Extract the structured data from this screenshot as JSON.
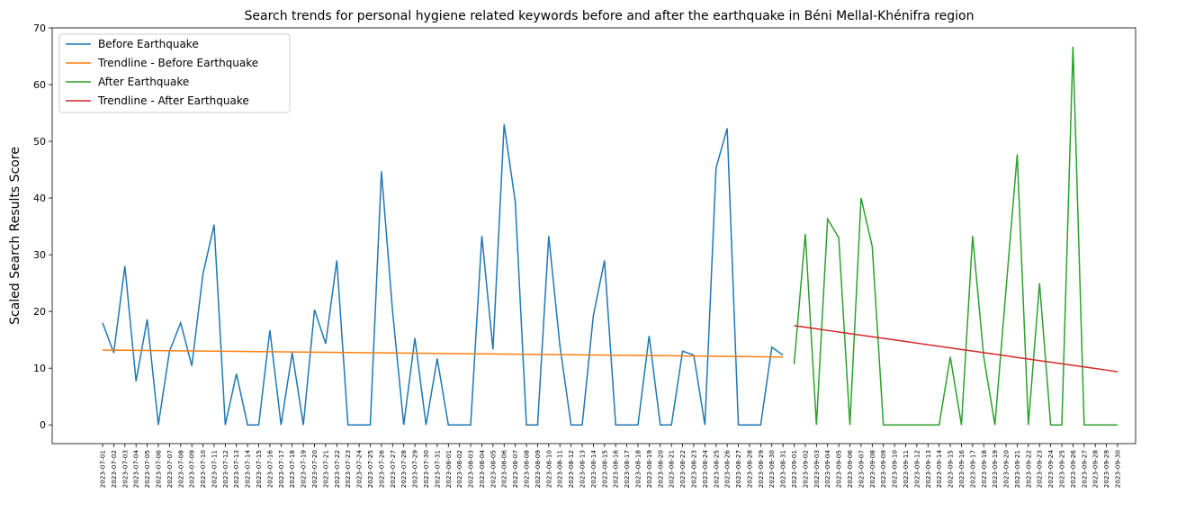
{
  "chart_data": {
    "type": "line",
    "title": "Search trends for personal hygiene related keywords before and after the earthquake in Béni Mellal-Khénifra region",
    "y_label": "Scaled Search Results Score",
    "categories": [
      "2023-07-01",
      "2023-07-02",
      "2023-07-03",
      "2023-07-04",
      "2023-07-05",
      "2023-07-06",
      "2023-07-07",
      "2023-07-08",
      "2023-07-09",
      "2023-07-10",
      "2023-07-11",
      "2023-07-12",
      "2023-07-13",
      "2023-07-14",
      "2023-07-15",
      "2023-07-16",
      "2023-07-17",
      "2023-07-18",
      "2023-07-19",
      "2023-07-20",
      "2023-07-21",
      "2023-07-22",
      "2023-07-23",
      "2023-07-24",
      "2023-07-25",
      "2023-07-26",
      "2023-07-27",
      "2023-07-28",
      "2023-07-29",
      "2023-07-30",
      "2023-07-31",
      "2023-08-01",
      "2023-08-02",
      "2023-08-03",
      "2023-08-04",
      "2023-08-05",
      "2023-08-06",
      "2023-08-07",
      "2023-08-08",
      "2023-08-09",
      "2023-08-10",
      "2023-08-11",
      "2023-08-12",
      "2023-08-13",
      "2023-08-14",
      "2023-08-15",
      "2023-08-16",
      "2023-08-17",
      "2023-08-18",
      "2023-08-19",
      "2023-08-20",
      "2023-08-21",
      "2023-08-22",
      "2023-08-23",
      "2023-08-24",
      "2023-08-25",
      "2023-08-26",
      "2023-08-27",
      "2023-08-28",
      "2023-08-29",
      "2023-08-30",
      "2023-08-31",
      "2023-09-01",
      "2023-09-02",
      "2023-09-03",
      "2023-09-04",
      "2023-09-05",
      "2023-09-06",
      "2023-09-07",
      "2023-09-08",
      "2023-09-09",
      "2023-09-10",
      "2023-09-11",
      "2023-09-12",
      "2023-09-13",
      "2023-09-14",
      "2023-09-15",
      "2023-09-16",
      "2023-09-17",
      "2023-09-18",
      "2023-09-19",
      "2023-09-20",
      "2023-09-21",
      "2023-09-22",
      "2023-09-23",
      "2023-09-24",
      "2023-09-25",
      "2023-09-26",
      "2023-09-27",
      "2023-09-28",
      "2023-09-29",
      "2023-09-30"
    ],
    "series": [
      {
        "name": "Before Earthquake",
        "color": "#1f77b4",
        "values": [
          18,
          12.7,
          28,
          7.7,
          18.6,
          0,
          13,
          18,
          10.4,
          26.6,
          35.3,
          0,
          9,
          0,
          0,
          16.7,
          0,
          12.7,
          0,
          20.3,
          14.3,
          29,
          0,
          0,
          0,
          44.7,
          20,
          0,
          15.3,
          0,
          11.7,
          0,
          0,
          0,
          33.3,
          13.3,
          53,
          39.3,
          0,
          0,
          33.3,
          14,
          0,
          0,
          19.3,
          29,
          0,
          0,
          0,
          15.7,
          0,
          0,
          13,
          12.3,
          0,
          45.3,
          52.3,
          0,
          0,
          0,
          13.7,
          12.3,
          null,
          null,
          null,
          null,
          null,
          null,
          null,
          null,
          null,
          null,
          null,
          null,
          null,
          null,
          null,
          null,
          null,
          null,
          null,
          null,
          null,
          null,
          null,
          null,
          null,
          null,
          null,
          null,
          null,
          null
        ]
      },
      {
        "name": "Trendline - Before Earthquake",
        "color": "#ff7f0e",
        "values": [
          13.2,
          13.18,
          13.16,
          13.14,
          13.12,
          13.1,
          13.08,
          13.06,
          13.04,
          13.02,
          13,
          12.98,
          12.96,
          12.94,
          12.92,
          12.9,
          12.88,
          12.86,
          12.84,
          12.82,
          12.8,
          12.78,
          12.76,
          12.74,
          12.72,
          12.7,
          12.68,
          12.66,
          12.64,
          12.62,
          12.6,
          12.58,
          12.56,
          12.54,
          12.52,
          12.5,
          12.48,
          12.46,
          12.44,
          12.42,
          12.4,
          12.38,
          12.36,
          12.34,
          12.32,
          12.3,
          12.28,
          12.26,
          12.24,
          12.22,
          12.2,
          12.18,
          12.16,
          12.14,
          12.12,
          12.1,
          12.08,
          12.06,
          12.04,
          12.02,
          12,
          11.98,
          null,
          null,
          null,
          null,
          null,
          null,
          null,
          null,
          null,
          null,
          null,
          null,
          null,
          null,
          null,
          null,
          null,
          null,
          null,
          null,
          null,
          null,
          null,
          null,
          null,
          null,
          null,
          null,
          null,
          null
        ]
      },
      {
        "name": "After Earthquake",
        "color": "#2ca02c",
        "values": [
          null,
          null,
          null,
          null,
          null,
          null,
          null,
          null,
          null,
          null,
          null,
          null,
          null,
          null,
          null,
          null,
          null,
          null,
          null,
          null,
          null,
          null,
          null,
          null,
          null,
          null,
          null,
          null,
          null,
          null,
          null,
          null,
          null,
          null,
          null,
          null,
          null,
          null,
          null,
          null,
          null,
          null,
          null,
          null,
          null,
          null,
          null,
          null,
          null,
          null,
          null,
          null,
          null,
          null,
          null,
          null,
          null,
          null,
          null,
          null,
          null,
          null,
          10.7,
          33.7,
          0,
          36.3,
          33,
          0,
          40,
          31.5,
          0,
          0,
          0,
          0,
          0,
          0,
          12,
          0,
          33.3,
          12,
          0,
          24,
          47.7,
          0,
          25,
          0,
          0,
          66.7,
          0,
          0,
          0,
          0
        ]
      },
      {
        "name": "Trendline - After Earthquake",
        "color": "#d62728",
        "values": [
          null,
          null,
          null,
          null,
          null,
          null,
          null,
          null,
          null,
          null,
          null,
          null,
          null,
          null,
          null,
          null,
          null,
          null,
          null,
          null,
          null,
          null,
          null,
          null,
          null,
          null,
          null,
          null,
          null,
          null,
          null,
          null,
          null,
          null,
          null,
          null,
          null,
          null,
          null,
          null,
          null,
          null,
          null,
          null,
          null,
          null,
          null,
          null,
          null,
          null,
          null,
          null,
          null,
          null,
          null,
          null,
          null,
          null,
          null,
          null,
          null,
          null,
          17.5,
          17.22,
          16.94,
          16.66,
          16.38,
          16.1,
          15.82,
          15.54,
          15.26,
          14.98,
          14.7,
          14.42,
          14.14,
          13.86,
          13.58,
          13.3,
          13.02,
          12.74,
          12.46,
          12.18,
          11.9,
          11.62,
          11.34,
          11.06,
          10.78,
          10.5,
          10.22,
          9.94,
          9.66,
          9.38
        ]
      }
    ],
    "ylim": [
      -3.3,
      70
    ],
    "yticks": [
      0,
      10,
      20,
      30,
      40,
      50,
      60,
      70
    ],
    "legend": "upper left"
  }
}
